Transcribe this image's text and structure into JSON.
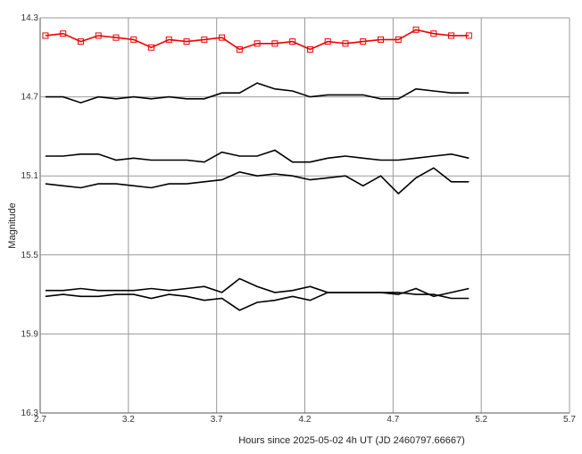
{
  "chart_data": {
    "type": "line",
    "xlabel": "Hours since 2025-05-02 4h UT (JD 2460797.66667)",
    "ylabel": "Magnitude",
    "xlim": [
      2.7,
      5.7
    ],
    "ylim": [
      16.3,
      14.3
    ],
    "y_inverted": true,
    "x_ticks": [
      "2.7",
      "3.2",
      "3.7",
      "4.2",
      "4.7",
      "5.2",
      "5.7"
    ],
    "y_ticks": [
      "14.3",
      "14.7",
      "15.1",
      "15.5",
      "15.9",
      "16.3"
    ],
    "grid": true,
    "x": [
      2.73,
      2.83,
      2.93,
      3.03,
      3.13,
      3.23,
      3.33,
      3.43,
      3.53,
      3.63,
      3.73,
      3.83,
      3.93,
      4.03,
      4.13,
      4.23,
      4.33,
      4.43,
      4.53,
      4.63,
      4.73,
      4.83,
      4.93,
      5.03,
      5.13
    ],
    "series": [
      {
        "color": "#ee0000",
        "marker": "square",
        "values": [
          14.39,
          14.38,
          14.42,
          14.39,
          14.4,
          14.41,
          14.45,
          14.41,
          14.42,
          14.41,
          14.4,
          14.46,
          14.43,
          14.43,
          14.42,
          14.46,
          14.42,
          14.43,
          14.42,
          14.41,
          14.41,
          14.36,
          14.38,
          14.39,
          14.39
        ]
      },
      {
        "color": "#000000",
        "marker": "none",
        "values": [
          14.7,
          14.7,
          14.73,
          14.7,
          14.71,
          14.7,
          14.71,
          14.7,
          14.71,
          14.71,
          14.68,
          14.68,
          14.63,
          14.66,
          14.67,
          14.7,
          14.69,
          14.69,
          14.69,
          14.71,
          14.71,
          14.66,
          14.67,
          14.68,
          14.68
        ]
      },
      {
        "color": "#000000",
        "marker": "none",
        "values": [
          15.0,
          15.0,
          14.99,
          14.99,
          15.02,
          15.01,
          15.02,
          15.02,
          15.02,
          15.03,
          14.98,
          15.0,
          15.0,
          14.97,
          15.03,
          15.03,
          15.01,
          15.0,
          15.01,
          15.02,
          15.02,
          15.01,
          15.0,
          14.99,
          15.01
        ]
      },
      {
        "color": "#000000",
        "marker": "none",
        "values": [
          15.14,
          15.15,
          15.16,
          15.14,
          15.14,
          15.15,
          15.16,
          15.14,
          15.14,
          15.13,
          15.12,
          15.08,
          15.1,
          15.09,
          15.1,
          15.12,
          15.11,
          15.1,
          15.15,
          15.1,
          15.19,
          15.11,
          15.06,
          15.13,
          15.13
        ]
      },
      {
        "color": "#000000",
        "marker": "none",
        "values": [
          15.68,
          15.68,
          15.67,
          15.68,
          15.68,
          15.68,
          15.67,
          15.68,
          15.67,
          15.66,
          15.69,
          15.62,
          15.66,
          15.69,
          15.68,
          15.66,
          15.69,
          15.69,
          15.69,
          15.69,
          15.7,
          15.67,
          15.71,
          15.69,
          15.67
        ]
      },
      {
        "color": "#000000",
        "marker": "none",
        "values": [
          15.71,
          15.7,
          15.71,
          15.71,
          15.7,
          15.7,
          15.72,
          15.7,
          15.71,
          15.73,
          15.72,
          15.78,
          15.74,
          15.73,
          15.71,
          15.73,
          15.69,
          15.69,
          15.69,
          15.69,
          15.69,
          15.7,
          15.7,
          15.72,
          15.72
        ]
      }
    ]
  }
}
